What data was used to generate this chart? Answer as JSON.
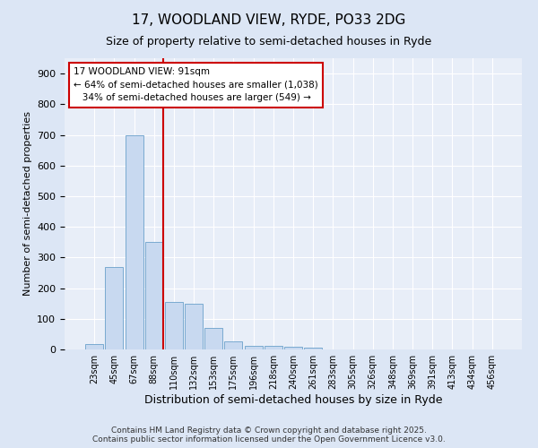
{
  "title1": "17, WOODLAND VIEW, RYDE, PO33 2DG",
  "title2": "Size of property relative to semi-detached houses in Ryde",
  "xlabel": "Distribution of semi-detached houses by size in Ryde",
  "ylabel": "Number of semi-detached properties",
  "bar_labels": [
    "23sqm",
    "45sqm",
    "67sqm",
    "88sqm",
    "110sqm",
    "132sqm",
    "153sqm",
    "175sqm",
    "196sqm",
    "218sqm",
    "240sqm",
    "261sqm",
    "283sqm",
    "305sqm",
    "326sqm",
    "348sqm",
    "369sqm",
    "391sqm",
    "413sqm",
    "434sqm",
    "456sqm"
  ],
  "bar_values": [
    18,
    270,
    700,
    350,
    155,
    150,
    70,
    25,
    12,
    12,
    8,
    5,
    0,
    0,
    0,
    0,
    0,
    0,
    0,
    0,
    0
  ],
  "bar_color": "#c8d9f0",
  "bar_edge_color": "#7aaad0",
  "vline_color": "#cc0000",
  "annotation_text": "17 WOODLAND VIEW: 91sqm\n← 64% of semi-detached houses are smaller (1,038)\n   34% of semi-detached houses are larger (549) →",
  "annotation_box_color": "#ffffff",
  "annotation_box_edge_color": "#cc0000",
  "ylim": [
    0,
    950
  ],
  "yticks": [
    0,
    100,
    200,
    300,
    400,
    500,
    600,
    700,
    800,
    900
  ],
  "footer": "Contains HM Land Registry data © Crown copyright and database right 2025.\nContains public sector information licensed under the Open Government Licence v3.0.",
  "bg_color": "#dce6f5",
  "plot_bg_color": "#e8eef8",
  "grid_color": "#ffffff",
  "title1_fontsize": 11,
  "title2_fontsize": 9
}
